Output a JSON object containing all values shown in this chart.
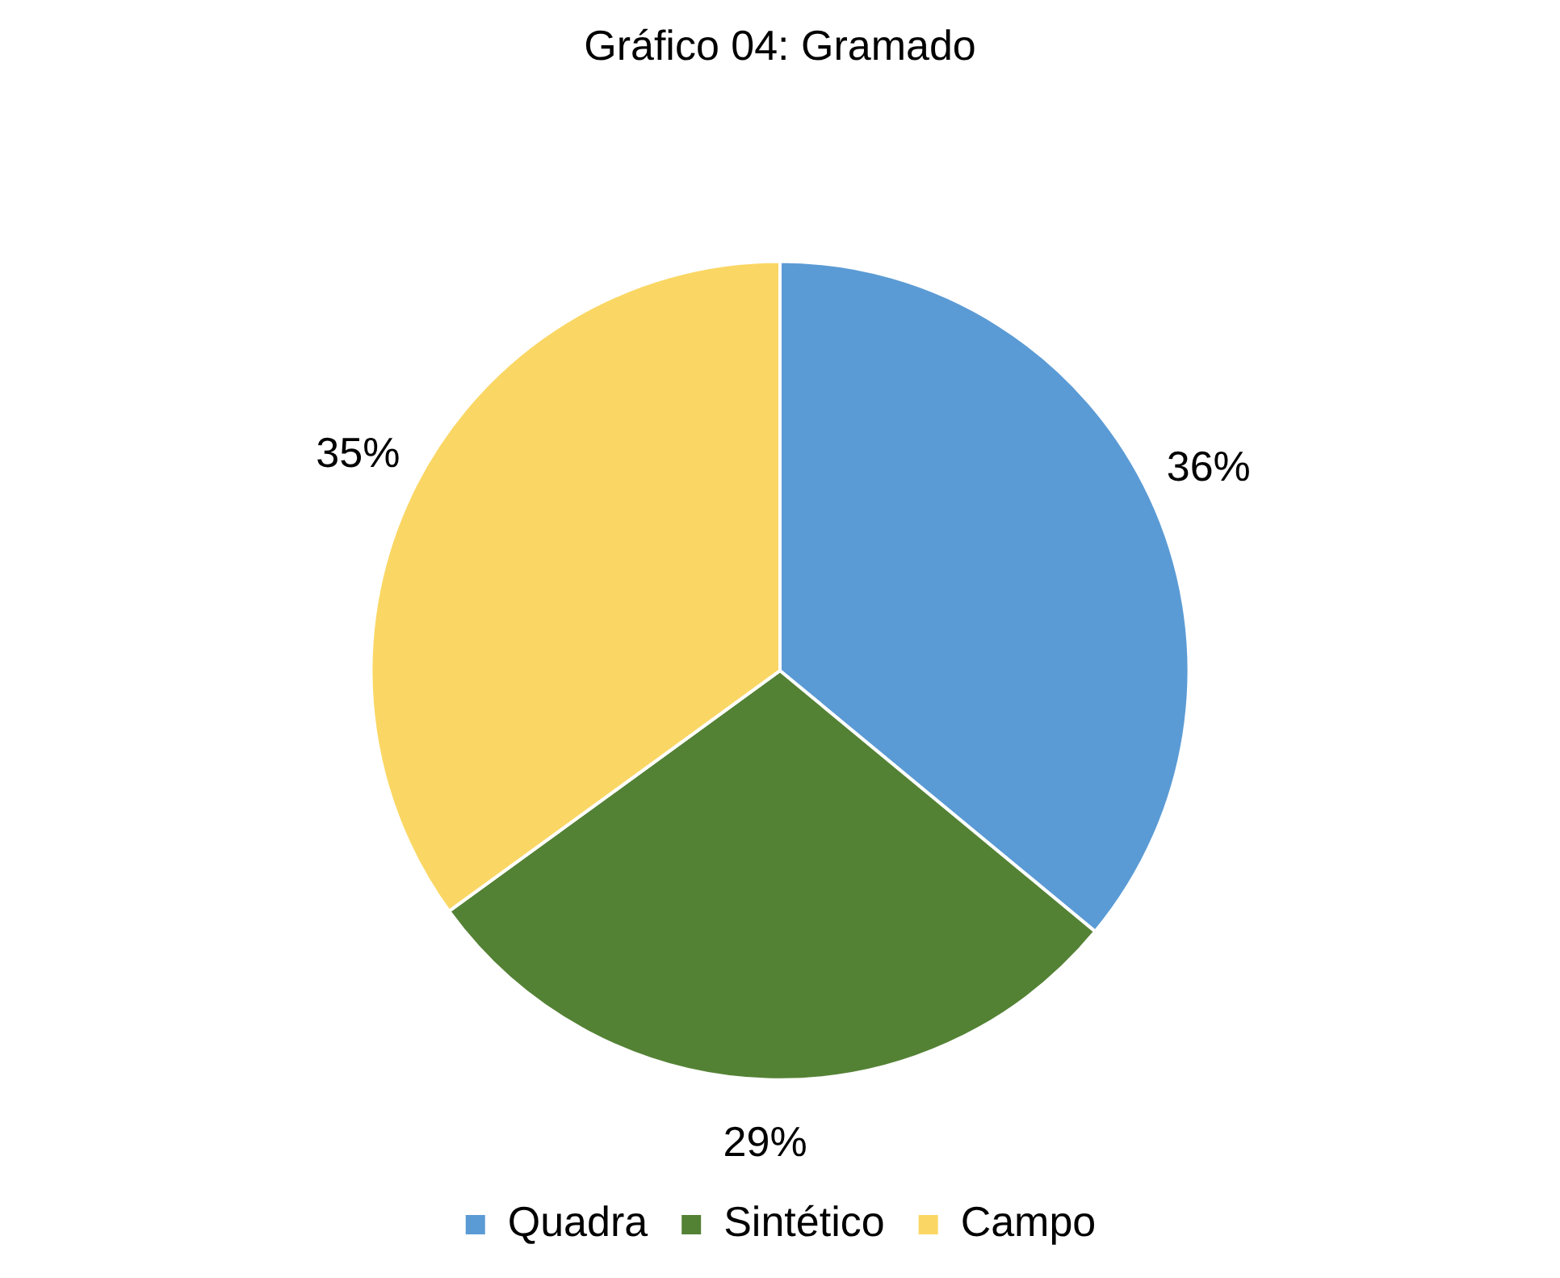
{
  "chart_data": {
    "type": "pie",
    "title": "Gráfico 04: Gramado",
    "categories": [
      "Quadra",
      "Sintético",
      "Campo"
    ],
    "values": [
      36,
      29,
      35
    ],
    "colors": [
      "#5b9bd5",
      "#548235",
      "#fad764"
    ],
    "value_labels": [
      "36%",
      "29%",
      "35%"
    ],
    "legend": "bottom"
  }
}
